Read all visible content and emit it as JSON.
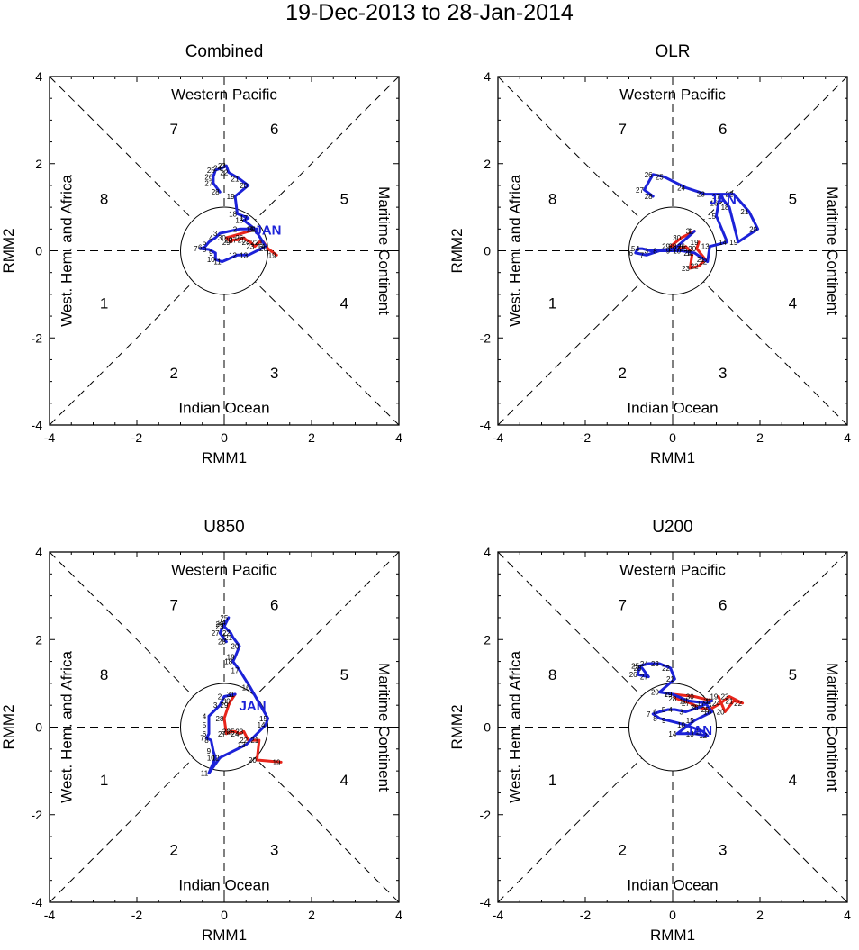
{
  "title": "19-Dec-2013 to 28-Jan-2014",
  "colors": {
    "dec": "#e8251b",
    "jan": "#1c22d8",
    "axes": "#000000"
  },
  "labels": {
    "xlabel": "RMM1",
    "ylabel": "RMM2",
    "top": "Western Pacific",
    "bottom": "Indian Ocean",
    "left": "West. Hem. and Africa",
    "right": "Maritime Continent",
    "month_label": "JAN",
    "phases": [
      "1",
      "2",
      "3",
      "4",
      "5",
      "6",
      "7",
      "8"
    ]
  },
  "axis": {
    "xlim": [
      -4,
      4
    ],
    "ylim": [
      -4,
      4
    ],
    "ticks": [
      -4,
      -2,
      0,
      2,
      4
    ]
  },
  "chart_data": [
    {
      "type": "line",
      "title": "Combined",
      "month_label_at": [
        1.0,
        0.5
      ],
      "series": [
        {
          "name": "Dec 2013",
          "color": "#e8251b",
          "points": [
            [
              1.2,
              -0.1
            ],
            [
              1.0,
              0.05
            ],
            [
              0.9,
              0.2
            ],
            [
              0.8,
              0.2
            ],
            [
              0.7,
              0.1
            ],
            [
              0.6,
              0.2
            ],
            [
              0.5,
              0.25
            ],
            [
              0.45,
              0.3
            ],
            [
              0.3,
              0.25
            ],
            [
              0.2,
              0.25
            ],
            [
              0.15,
              0.2
            ],
            [
              0.05,
              0.3
            ],
            [
              0.75,
              0.5
            ]
          ],
          "days": [
            "19",
            "20",
            "21",
            "22",
            "23",
            "24",
            "25",
            "26",
            "27",
            "28",
            "29",
            "30",
            "31"
          ]
        },
        {
          "name": "Jan 2014",
          "color": "#1c22d8",
          "points": [
            [
              0.75,
              0.5
            ],
            [
              0.35,
              0.5
            ],
            [
              -0.1,
              0.4
            ],
            [
              -0.2,
              0.3
            ],
            [
              -0.35,
              0.2
            ],
            [
              -0.45,
              0.08
            ],
            [
              -0.55,
              0.05
            ],
            [
              -0.35,
              0.03
            ],
            [
              -0.2,
              -0.05
            ],
            [
              -0.2,
              -0.2
            ],
            [
              -0.05,
              -0.25
            ],
            [
              0.3,
              -0.1
            ],
            [
              0.55,
              -0.1
            ],
            [
              0.95,
              0.1
            ],
            [
              0.7,
              0.5
            ],
            [
              0.45,
              0.7
            ],
            [
              0.55,
              0.75
            ],
            [
              0.3,
              0.85
            ],
            [
              0.25,
              1.25
            ],
            [
              0.55,
              1.5
            ],
            [
              0.35,
              1.65
            ],
            [
              0.1,
              1.8
            ],
            [
              0.05,
              1.95
            ],
            [
              -0.05,
              1.9
            ],
            [
              -0.2,
              1.85
            ],
            [
              -0.25,
              1.7
            ],
            [
              -0.25,
              1.55
            ],
            [
              -0.1,
              1.35
            ]
          ],
          "days": [
            "1",
            "2",
            "3",
            "4",
            "5",
            "6",
            "7",
            "8",
            "9",
            "10",
            "11",
            "12",
            "13",
            "14",
            "15",
            "16",
            "17",
            "18",
            "19",
            "20",
            "21",
            "22",
            "23",
            "24",
            "25",
            "26",
            "27",
            "28"
          ]
        }
      ]
    },
    {
      "type": "line",
      "title": "OLR",
      "month_label_at": [
        1.15,
        1.2
      ],
      "series": [
        {
          "name": "Dec 2013",
          "color": "#e8251b",
          "points": [
            [
              0.6,
              0.2
            ],
            [
              0.55,
              0.05
            ],
            [
              0.75,
              -0.2
            ],
            [
              0.6,
              -0.35
            ],
            [
              0.4,
              -0.4
            ],
            [
              0.45,
              -0.05
            ],
            [
              0.35,
              0.05
            ],
            [
              0.3,
              0.1
            ],
            [
              0.2,
              0.05
            ],
            [
              0.1,
              0.1
            ],
            [
              -0.05,
              0.1
            ],
            [
              0.2,
              0.3
            ],
            [
              0.5,
              0.45
            ]
          ],
          "days": [
            "19",
            "20",
            "21",
            "22",
            "23",
            "24",
            "25",
            "26",
            "27",
            "28",
            "29",
            "30",
            "31"
          ]
        },
        {
          "name": "Jan 2014",
          "color": "#1c22d8",
          "points": [
            [
              0.5,
              0.45
            ],
            [
              0.05,
              0.05
            ],
            [
              -0.5,
              0.0
            ],
            [
              -0.7,
              0.05
            ],
            [
              -0.8,
              0.05
            ],
            [
              -0.85,
              -0.05
            ],
            [
              -0.6,
              -0.1
            ],
            [
              -0.3,
              0.0
            ],
            [
              0.0,
              0.0
            ],
            [
              0.2,
              0.0
            ],
            [
              0.5,
              -0.05
            ],
            [
              0.8,
              -0.25
            ],
            [
              0.85,
              0.1
            ],
            [
              1.25,
              0.2
            ],
            [
              1.0,
              0.8
            ],
            [
              1.05,
              1.1
            ],
            [
              1.1,
              1.25
            ],
            [
              1.3,
              1.0
            ],
            [
              1.5,
              0.2
            ],
            [
              1.95,
              0.5
            ],
            [
              1.75,
              0.9
            ],
            [
              1.4,
              1.3
            ],
            [
              0.75,
              1.3
            ],
            [
              0.3,
              1.45
            ],
            [
              -0.2,
              1.7
            ],
            [
              -0.45,
              1.75
            ],
            [
              -0.65,
              1.4
            ],
            [
              -0.45,
              1.25
            ]
          ],
          "days": [
            "1",
            "2",
            "3",
            "4",
            "5",
            "6",
            "7",
            "8",
            "9",
            "10",
            "11",
            "12",
            "13",
            "14",
            "15",
            "16",
            "17",
            "18",
            "19",
            "20",
            "21",
            "22",
            "23",
            "24",
            "25",
            "26",
            "27",
            "28"
          ]
        }
      ]
    },
    {
      "type": "line",
      "title": "U850",
      "month_label_at": [
        0.65,
        0.5
      ],
      "series": [
        {
          "name": "Dec 2013",
          "color": "#e8251b",
          "points": [
            [
              1.3,
              -0.8
            ],
            [
              0.75,
              -0.75
            ],
            [
              0.8,
              -0.3
            ],
            [
              0.55,
              -0.3
            ],
            [
              0.45,
              -0.1
            ],
            [
              0.35,
              -0.15
            ],
            [
              0.25,
              -0.1
            ],
            [
              0.15,
              -0.1
            ],
            [
              0.05,
              -0.15
            ],
            [
              0.0,
              0.2
            ],
            [
              0.1,
              0.5
            ],
            [
              0.15,
              0.6
            ],
            [
              0.25,
              0.75
            ]
          ],
          "days": [
            "19",
            "20",
            "21",
            "22",
            "23",
            "24",
            "25",
            "26",
            "27",
            "28",
            "29",
            "30",
            "31"
          ]
        },
        {
          "name": "Jan 2014",
          "color": "#1c22d8",
          "points": [
            [
              0.25,
              0.75
            ],
            [
              0.0,
              0.7
            ],
            [
              -0.1,
              0.5
            ],
            [
              -0.35,
              0.25
            ],
            [
              -0.35,
              0.05
            ],
            [
              -0.35,
              -0.15
            ],
            [
              -0.4,
              -0.25
            ],
            [
              -0.3,
              -0.3
            ],
            [
              -0.25,
              -0.55
            ],
            [
              -0.2,
              -0.7
            ],
            [
              -0.35,
              -1.05
            ],
            [
              -0.1,
              -0.7
            ],
            [
              0.5,
              -0.4
            ],
            [
              0.95,
              0.05
            ],
            [
              1.0,
              0.2
            ],
            [
              0.6,
              0.9
            ],
            [
              0.35,
              1.3
            ],
            [
              0.2,
              1.5
            ],
            [
              0.25,
              1.6
            ],
            [
              0.35,
              1.85
            ],
            [
              0.2,
              2.05
            ],
            [
              0.15,
              2.15
            ],
            [
              0.0,
              2.3
            ],
            [
              0.05,
              2.4
            ],
            [
              0.1,
              2.5
            ],
            [
              0.0,
              2.35
            ],
            [
              -0.1,
              2.15
            ],
            [
              0.05,
              1.95
            ]
          ],
          "days": [
            "1",
            "2",
            "3",
            "4",
            "5",
            "6",
            "7",
            "8",
            "9",
            "10",
            "11",
            "12",
            "13",
            "14",
            "15",
            "16",
            "17",
            "18",
            "19",
            "20",
            "21",
            "22",
            "23",
            "24",
            "25",
            "26",
            "27",
            "28"
          ]
        }
      ]
    },
    {
      "type": "line",
      "title": "U200",
      "month_label_at": [
        0.6,
        -0.05
      ],
      "series": [
        {
          "name": "Dec 2013",
          "color": "#e8251b",
          "points": [
            [
              1.05,
              0.7
            ],
            [
              1.2,
              0.35
            ],
            [
              1.4,
              0.6
            ],
            [
              1.6,
              0.55
            ],
            [
              1.3,
              0.7
            ],
            [
              1.1,
              0.55
            ],
            [
              0.85,
              0.4
            ],
            [
              0.6,
              0.45
            ],
            [
              0.4,
              0.55
            ],
            [
              0.1,
              0.65
            ],
            [
              0.0,
              0.75
            ],
            [
              0.5,
              0.7
            ],
            [
              0.9,
              0.6
            ]
          ],
          "days": [
            "19",
            "20",
            "21",
            "22",
            "23",
            "24",
            "25",
            "26",
            "27",
            "28",
            "29",
            "30",
            "31"
          ]
        },
        {
          "name": "Jan 2014",
          "color": "#1c22d8",
          "points": [
            [
              0.9,
              0.6
            ],
            [
              0.6,
              0.45
            ],
            [
              0.3,
              0.35
            ],
            [
              0.05,
              0.4
            ],
            [
              -0.1,
              0.4
            ],
            [
              -0.3,
              0.35
            ],
            [
              -0.45,
              0.3
            ],
            [
              -0.3,
              0.2
            ],
            [
              -0.1,
              0.15
            ],
            [
              0.3,
              0.05
            ],
            [
              0.7,
              -0.1
            ],
            [
              0.8,
              -0.2
            ],
            [
              0.5,
              -0.15
            ],
            [
              0.1,
              -0.15
            ],
            [
              0.5,
              0.15
            ],
            [
              0.9,
              0.35
            ],
            [
              0.75,
              0.55
            ],
            [
              0.35,
              0.6
            ],
            [
              0.0,
              0.75
            ],
            [
              -0.3,
              0.8
            ],
            [
              0.05,
              1.1
            ],
            [
              -0.05,
              1.35
            ],
            [
              -0.3,
              1.45
            ],
            [
              -0.55,
              1.45
            ],
            [
              -0.75,
              1.4
            ],
            [
              -0.8,
              1.2
            ],
            [
              -0.55,
              1.15
            ],
            [
              -0.7,
              1.35
            ]
          ],
          "days": [
            "1",
            "2",
            "3",
            "4",
            "5",
            "6",
            "7",
            "8",
            "9",
            "10",
            "11",
            "12",
            "13",
            "14",
            "15",
            "16",
            "17",
            "18",
            "19",
            "20",
            "21",
            "22",
            "23",
            "24",
            "25",
            "26",
            "27",
            "28"
          ]
        }
      ]
    }
  ]
}
